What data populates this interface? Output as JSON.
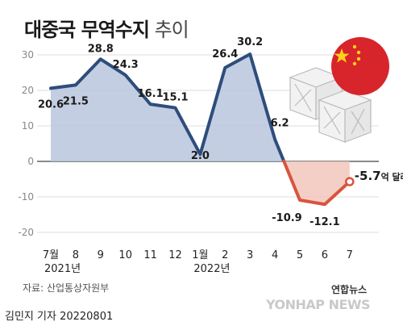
{
  "title_bold": "대중국 무역수지",
  "title_light": "추이",
  "source": "자료: 산업통상자원부",
  "reporter": "김민지 기자  20220801",
  "credit_ko": "연합뉴스",
  "credit_en": "YONHAP NEWS",
  "colors": {
    "line_pos": "#2e4d7b",
    "fill_pos": "#b9c6de",
    "line_neg": "#d9543f",
    "fill_neg": "#f2c7bc",
    "flag": "#d8242b",
    "star": "#ffd11a",
    "grid": "#dddddd"
  },
  "icons": [
    "china-flag-icon",
    "crate-icon"
  ],
  "chart_data": {
    "type": "area",
    "categories": [
      "7월",
      "8",
      "9",
      "10",
      "11",
      "12",
      "1월",
      "2",
      "3",
      "4",
      "5",
      "6",
      "7"
    ],
    "year_labels": [
      {
        "index": 0,
        "text": "2021년"
      },
      {
        "index": 6,
        "text": "2022년"
      }
    ],
    "values": [
      20.6,
      21.5,
      28.8,
      24.3,
      16.1,
      15.1,
      2.0,
      26.4,
      30.2,
      6.2,
      -10.9,
      -12.1,
      -5.7
    ],
    "value_labels": [
      "20.6",
      "21.5",
      "28.8",
      "24.3",
      "16.1",
      "15.1",
      "2.0",
      "26.4",
      "30.2",
      "6.2",
      "-10.9",
      "-12.1",
      "-5.7"
    ],
    "last_unit": "억 달러",
    "yticks": [
      30,
      20,
      10,
      0,
      -10,
      -20
    ],
    "ylim": [
      -22,
      34
    ],
    "grid": true
  }
}
